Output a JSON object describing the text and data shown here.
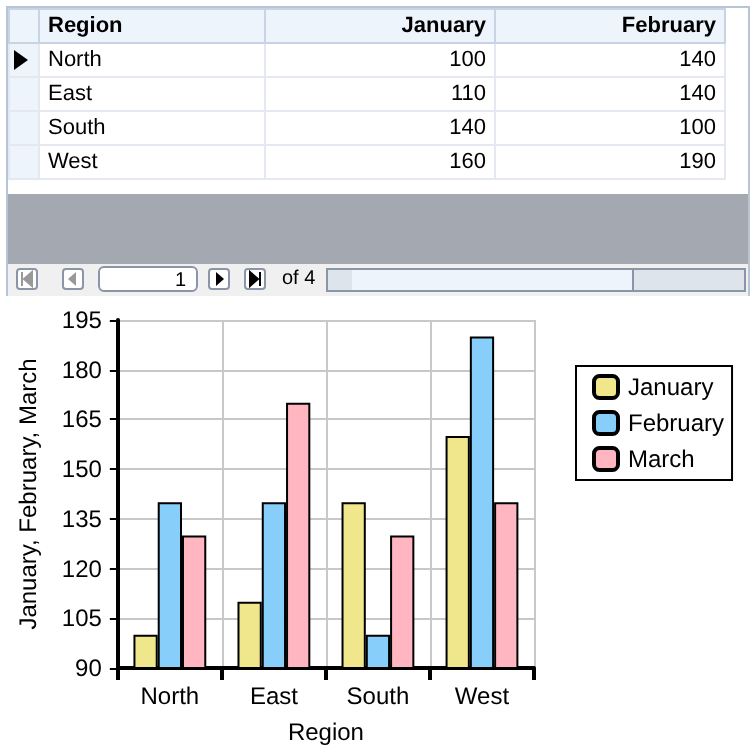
{
  "chart_data": {
    "type": "bar",
    "xlabel": "Region",
    "ylabel": "January, February, March",
    "categories": [
      "North",
      "East",
      "South",
      "West"
    ],
    "series": [
      {
        "name": "January",
        "color": "#f0e68c",
        "values": [
          100,
          110,
          140,
          160
        ]
      },
      {
        "name": "February",
        "color": "#87cefa",
        "values": [
          140,
          140,
          100,
          190
        ]
      },
      {
        "name": "March",
        "color": "#ffb6c1",
        "values": [
          130,
          170,
          130,
          140
        ]
      }
    ],
    "ylim": [
      90,
      195
    ],
    "yticks": [
      90,
      105,
      120,
      135,
      150,
      165,
      180,
      195
    ],
    "grid": true,
    "legend": "right",
    "annotations": [
      "1",
      "of 4",
      "100",
      "140",
      "110",
      "140",
      "140",
      "100",
      "160",
      "190"
    ]
  }
}
